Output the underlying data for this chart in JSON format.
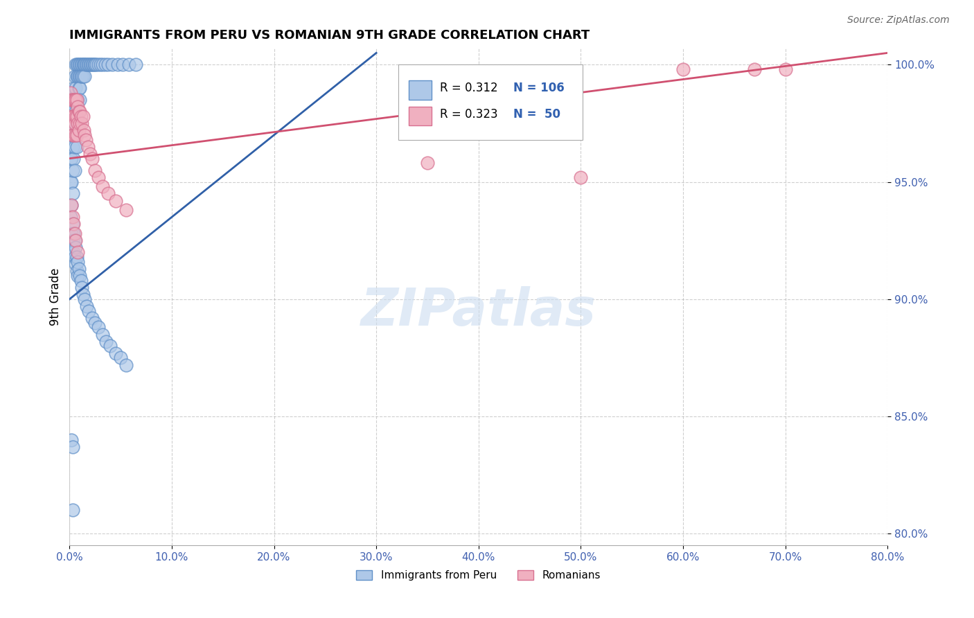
{
  "title": "IMMIGRANTS FROM PERU VS ROMANIAN 9TH GRADE CORRELATION CHART",
  "source": "Source: ZipAtlas.com",
  "ylabel": "9th Grade",
  "legend_label1": "Immigrants from Peru",
  "legend_label2": "Romanians",
  "legend_R1": "R = 0.312",
  "legend_N1": "N = 106",
  "legend_R2": "R = 0.323",
  "legend_N2": "N =  50",
  "blue_face": "#aec8e8",
  "blue_edge": "#6090c8",
  "pink_face": "#f0b0c0",
  "pink_edge": "#d87090",
  "blue_line_color": "#3060a8",
  "pink_line_color": "#d05070",
  "watermark_color": "#ccddf0",
  "xlim": [
    0.0,
    0.8
  ],
  "ylim": [
    0.795,
    1.007
  ],
  "xticks": [
    0.0,
    0.1,
    0.2,
    0.3,
    0.4,
    0.5,
    0.6,
    0.7,
    0.8
  ],
  "yticks": [
    0.8,
    0.85,
    0.9,
    0.95,
    1.0
  ],
  "peru_x": [
    0.001,
    0.001,
    0.001,
    0.002,
    0.002,
    0.002,
    0.002,
    0.002,
    0.003,
    0.003,
    0.003,
    0.003,
    0.003,
    0.004,
    0.004,
    0.004,
    0.004,
    0.005,
    0.005,
    0.005,
    0.005,
    0.005,
    0.006,
    0.006,
    0.006,
    0.006,
    0.007,
    0.007,
    0.007,
    0.007,
    0.007,
    0.008,
    0.008,
    0.008,
    0.009,
    0.009,
    0.009,
    0.01,
    0.01,
    0.01,
    0.01,
    0.011,
    0.011,
    0.012,
    0.012,
    0.013,
    0.013,
    0.014,
    0.015,
    0.015,
    0.016,
    0.017,
    0.018,
    0.019,
    0.02,
    0.021,
    0.022,
    0.023,
    0.024,
    0.025,
    0.026,
    0.028,
    0.03,
    0.032,
    0.035,
    0.038,
    0.042,
    0.047,
    0.052,
    0.058,
    0.065,
    0.001,
    0.002,
    0.002,
    0.003,
    0.003,
    0.004,
    0.004,
    0.005,
    0.005,
    0.006,
    0.006,
    0.007,
    0.007,
    0.008,
    0.008,
    0.009,
    0.01,
    0.011,
    0.012,
    0.013,
    0.015,
    0.017,
    0.019,
    0.022,
    0.025,
    0.028,
    0.032,
    0.036,
    0.04,
    0.045,
    0.05,
    0.055,
    0.002,
    0.003,
    0.003
  ],
  "peru_y": [
    0.97,
    0.96,
    0.95,
    0.98,
    0.97,
    0.96,
    0.95,
    0.94,
    0.985,
    0.975,
    0.965,
    0.955,
    0.945,
    0.99,
    0.98,
    0.97,
    0.96,
    0.995,
    0.985,
    0.975,
    0.965,
    0.955,
    1.0,
    0.99,
    0.98,
    0.97,
    1.0,
    0.995,
    0.985,
    0.975,
    0.965,
    1.0,
    0.995,
    0.985,
    1.0,
    0.995,
    0.99,
    1.0,
    0.995,
    0.99,
    0.985,
    1.0,
    0.995,
    1.0,
    0.995,
    1.0,
    0.995,
    1.0,
    1.0,
    0.995,
    1.0,
    1.0,
    1.0,
    1.0,
    1.0,
    1.0,
    1.0,
    1.0,
    1.0,
    1.0,
    1.0,
    1.0,
    1.0,
    1.0,
    1.0,
    1.0,
    1.0,
    1.0,
    1.0,
    1.0,
    1.0,
    0.935,
    0.928,
    0.92,
    0.932,
    0.925,
    0.928,
    0.92,
    0.925,
    0.918,
    0.922,
    0.915,
    0.918,
    0.912,
    0.916,
    0.91,
    0.913,
    0.91,
    0.908,
    0.905,
    0.902,
    0.9,
    0.897,
    0.895,
    0.892,
    0.89,
    0.888,
    0.885,
    0.882,
    0.88,
    0.877,
    0.875,
    0.872,
    0.84,
    0.837,
    0.81
  ],
  "romanian_x": [
    0.001,
    0.001,
    0.002,
    0.002,
    0.003,
    0.003,
    0.003,
    0.004,
    0.004,
    0.004,
    0.005,
    0.005,
    0.006,
    0.006,
    0.006,
    0.007,
    0.007,
    0.007,
    0.008,
    0.008,
    0.009,
    0.009,
    0.01,
    0.01,
    0.011,
    0.012,
    0.013,
    0.014,
    0.015,
    0.016,
    0.018,
    0.02,
    0.022,
    0.025,
    0.028,
    0.032,
    0.038,
    0.045,
    0.055,
    0.35,
    0.5,
    0.6,
    0.67,
    0.7,
    0.002,
    0.003,
    0.004,
    0.005,
    0.006,
    0.008
  ],
  "romanian_y": [
    0.988,
    0.978,
    0.985,
    0.975,
    0.985,
    0.978,
    0.97,
    0.985,
    0.978,
    0.97,
    0.985,
    0.975,
    0.985,
    0.978,
    0.97,
    0.985,
    0.978,
    0.97,
    0.982,
    0.975,
    0.98,
    0.972,
    0.98,
    0.975,
    0.978,
    0.975,
    0.978,
    0.972,
    0.97,
    0.968,
    0.965,
    0.962,
    0.96,
    0.955,
    0.952,
    0.948,
    0.945,
    0.942,
    0.938,
    0.958,
    0.952,
    0.998,
    0.998,
    0.998,
    0.94,
    0.935,
    0.932,
    0.928,
    0.925,
    0.92
  ],
  "blue_trend_x": [
    0.0,
    0.3
  ],
  "blue_trend_y": [
    0.9,
    1.005
  ],
  "pink_trend_x": [
    0.0,
    0.8
  ],
  "pink_trend_y": [
    0.96,
    1.005
  ]
}
